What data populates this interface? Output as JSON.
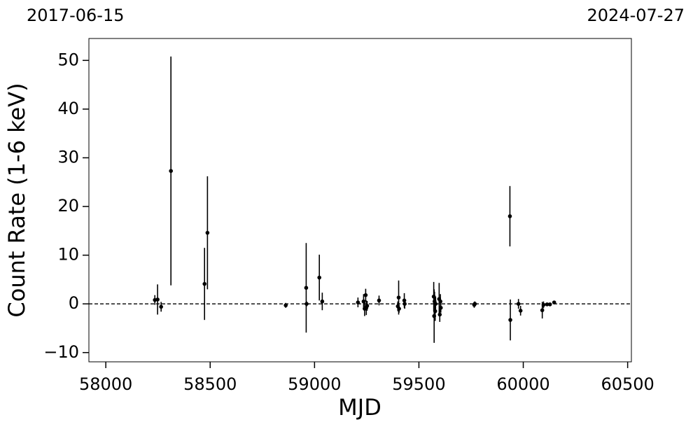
{
  "chart_data": {
    "type": "errorbar",
    "xlabel": "MJD",
    "ylabel": "Count Rate (1-6 keV)",
    "top_left_label": "2017-06-15",
    "top_right_label": "2024-07-27",
    "xlim": [
      57919,
      60518
    ],
    "ylim": [
      -11.9,
      54.5
    ],
    "xticks": [
      58000,
      58500,
      59000,
      59500,
      60000,
      60500
    ],
    "yticks": [
      {
        "value": -10,
        "label": "−10"
      },
      0,
      10,
      20,
      30,
      40,
      50
    ],
    "hline": 0,
    "series": [
      {
        "color": "#000000",
        "x": [
          58235,
          58248,
          58265,
          58312,
          58473,
          58487,
          58862,
          58960,
          58962,
          59023,
          59037,
          59208,
          59235,
          59240,
          59245,
          59248,
          59252,
          59309,
          59399,
          59403,
          59405,
          59430,
          59432,
          59571,
          59573,
          59575,
          59578,
          59580,
          59597,
          59600,
          59603,
          59605,
          59765,
          59768,
          59936,
          59938,
          59977,
          59987,
          60091,
          60097,
          60114,
          60128,
          60148
        ],
        "values": [
          0.8,
          0.9,
          -0.6,
          27.3,
          4.1,
          14.6,
          -0.3,
          3.3,
          0,
          5.4,
          0.5,
          0.3,
          0.5,
          -1,
          1.8,
          -0.8,
          -0.4,
          0.7,
          -0.5,
          1.3,
          -1,
          0.7,
          0,
          1.5,
          -2.5,
          0.5,
          -1.5,
          0,
          1,
          -2.2,
          0.5,
          -0.8,
          -0.2,
          0,
          18,
          -3.3,
          0,
          -1.4,
          -1.3,
          -0.2,
          -0.1,
          -0.1,
          0.3
        ],
        "errors": [
          1,
          3.1,
          1,
          23.5,
          7.4,
          11.6,
          0.5,
          9.2,
          0.5,
          4.7,
          1.8,
          1,
          1.5,
          1.5,
          1.3,
          1.5,
          1,
          1,
          1,
          3.5,
          0.8,
          1.5,
          1,
          3,
          5.5,
          2,
          2,
          1.5,
          3.3,
          1.5,
          1.5,
          1,
          0.6,
          0.5,
          6.2,
          4.2,
          1,
          1,
          1.7,
          0.7,
          0.3,
          0.3,
          0.3
        ]
      }
    ]
  }
}
